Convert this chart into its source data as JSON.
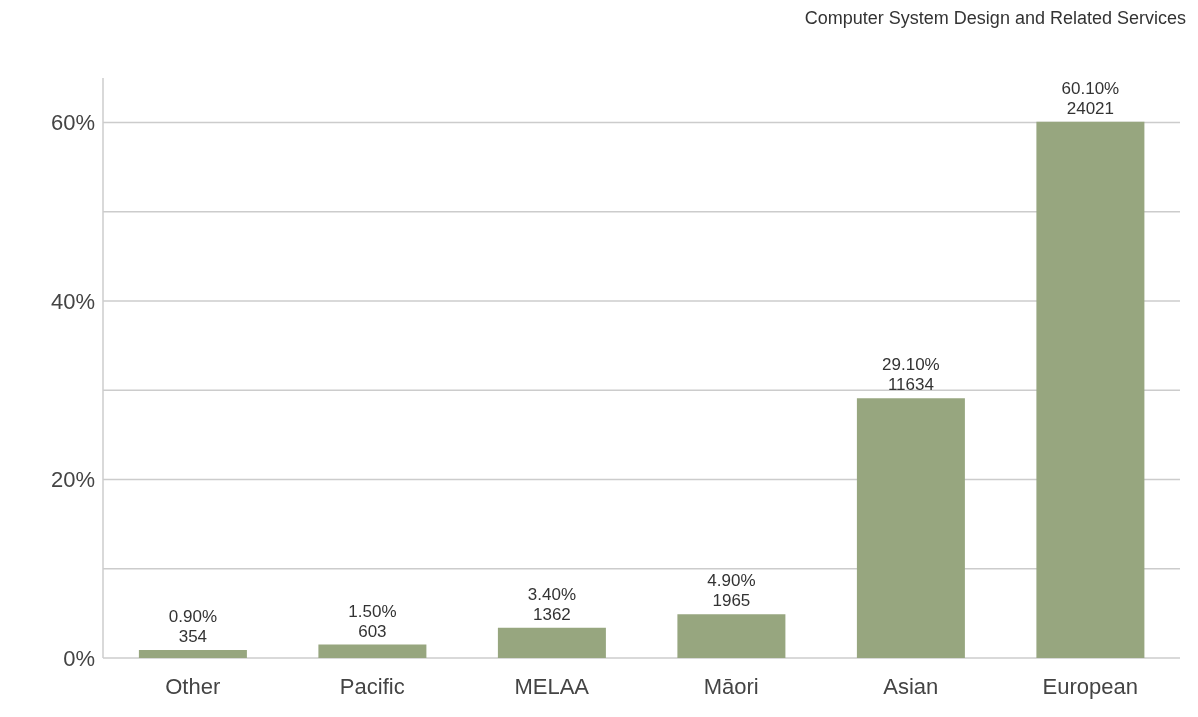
{
  "chart_data": {
    "type": "bar",
    "title": "Computer System Design and Related Services",
    "categories": [
      "Other",
      "Pacific",
      "MELAA",
      "Māori",
      "Asian",
      "European"
    ],
    "values": [
      0.9,
      1.5,
      3.4,
      4.9,
      29.1,
      60.1
    ],
    "value_labels": [
      "0.90%\n354",
      "1.50%\n603",
      "3.40%\n1362",
      "4.90%\n1965",
      "29.10%\n11634",
      "60.10%\n24021"
    ],
    "color": "#97a67f",
    "ylim": [
      0,
      65
    ],
    "yticks": [
      {
        "value": 0,
        "label": "0%"
      },
      {
        "value": 10,
        "label": null
      },
      {
        "value": 20,
        "label": "20%"
      },
      {
        "value": 30,
        "label": null
      },
      {
        "value": 40,
        "label": "40%"
      },
      {
        "value": 50,
        "label": null
      },
      {
        "value": 60,
        "label": "60%"
      }
    ],
    "grid": "y"
  }
}
